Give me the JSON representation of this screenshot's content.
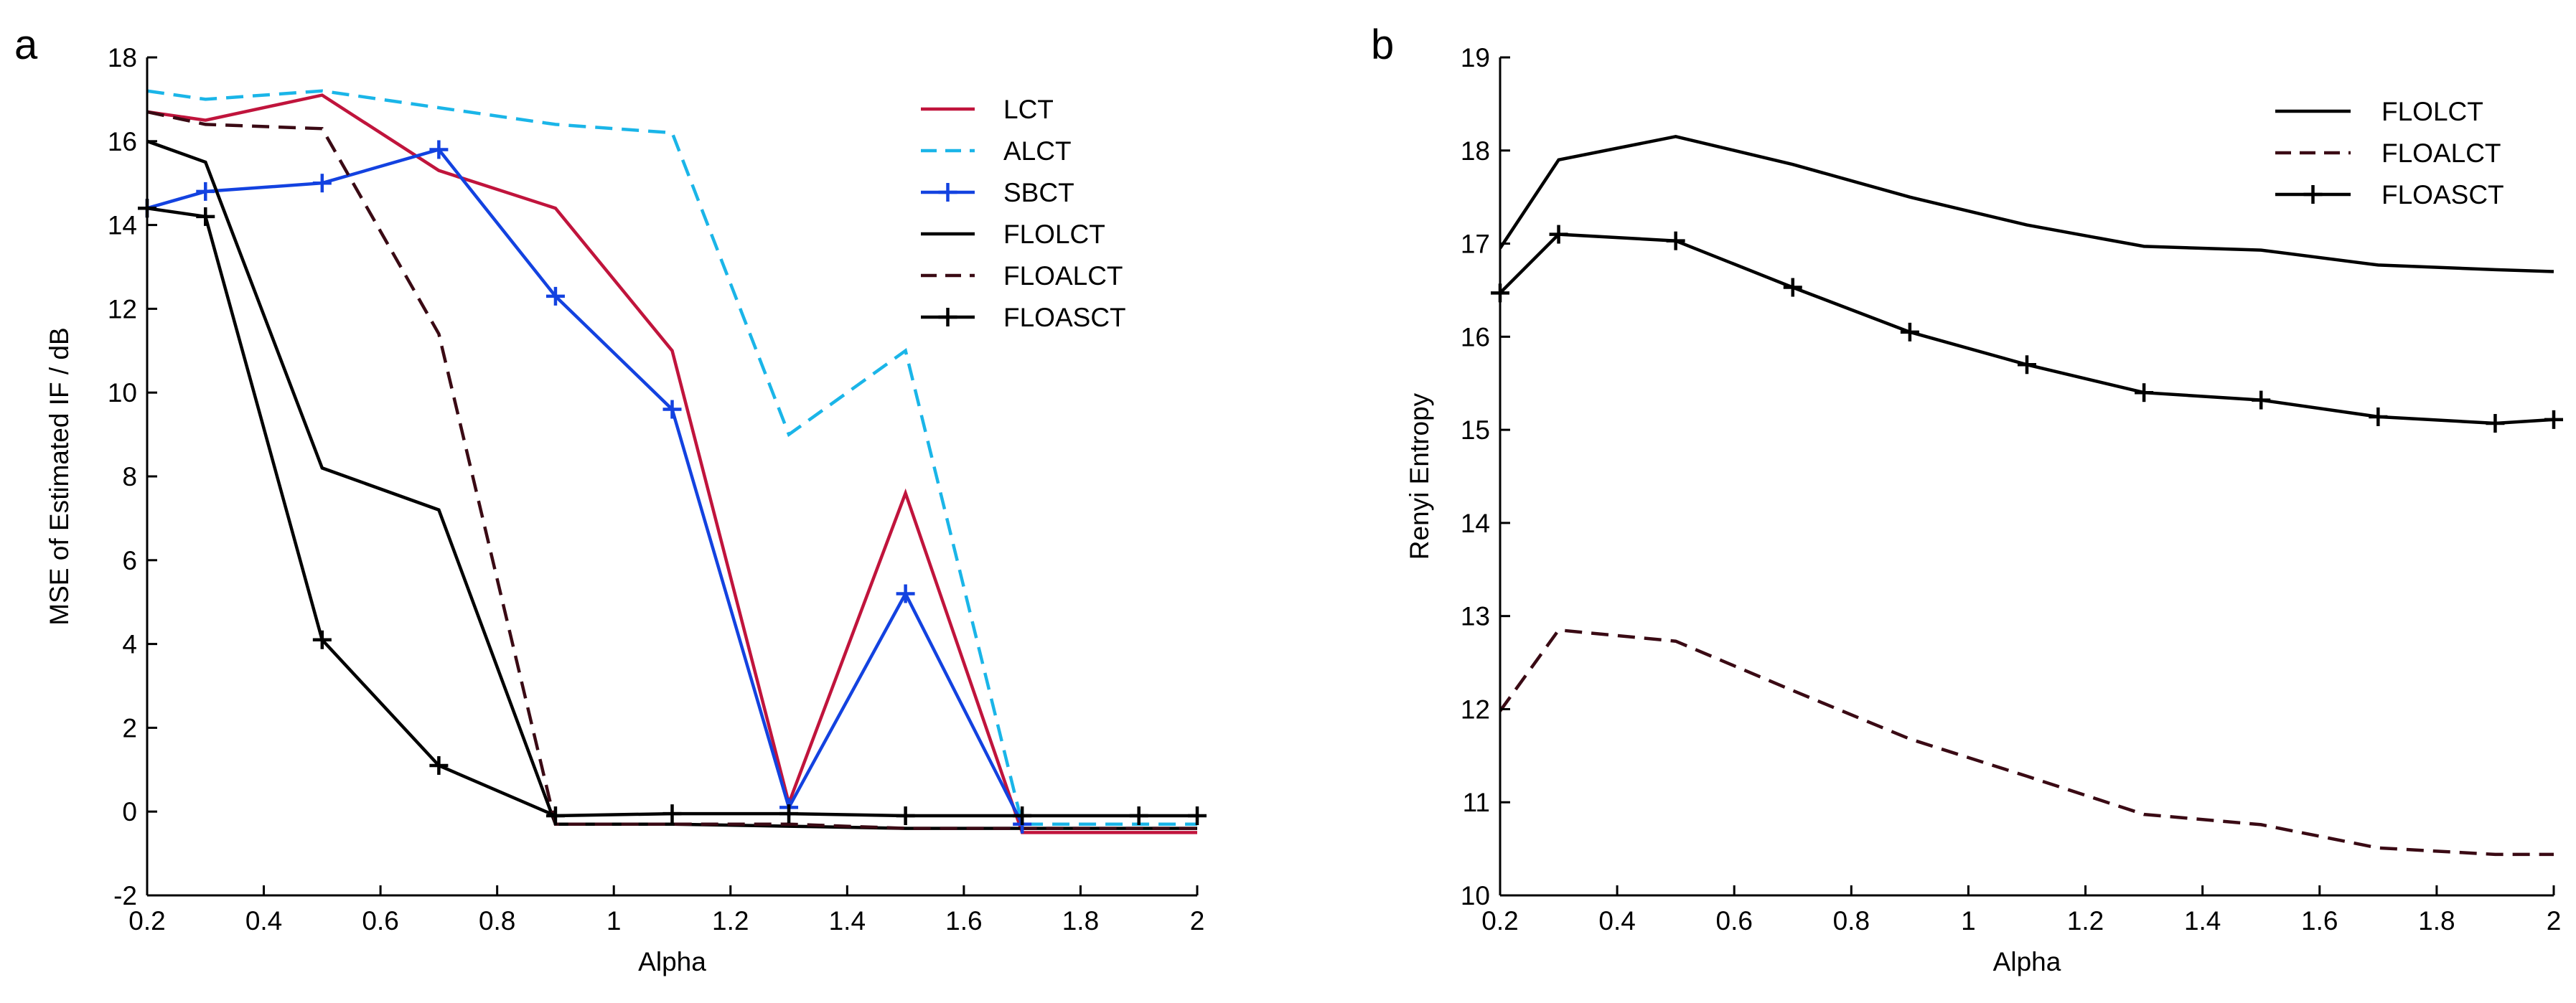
{
  "chart_data": [
    {
      "panel_label": "a",
      "type": "line",
      "xlabel": "Alpha",
      "ylabel": "MSE of Estimated IF / dB",
      "xlim": [
        0.2,
        2
      ],
      "ylim": [
        -2,
        18
      ],
      "xticks": [
        0.2,
        0.4,
        0.6,
        0.8,
        1,
        1.2,
        1.4,
        1.6,
        1.8,
        2
      ],
      "yticks": [
        -2,
        0,
        2,
        4,
        6,
        8,
        10,
        12,
        14,
        16,
        18
      ],
      "legend_position": "top-right",
      "series": [
        {
          "name": "LCT",
          "color": "#c0143c",
          "dash": "solid",
          "marker": "none",
          "x": [
            0.2,
            0.3,
            0.5,
            0.7,
            0.9,
            1.1,
            1.3,
            1.5,
            1.7,
            2.0
          ],
          "y": [
            16.7,
            16.5,
            17.1,
            15.3,
            14.4,
            11.0,
            0.2,
            7.6,
            -0.5,
            -0.5
          ]
        },
        {
          "name": "ALCT",
          "color": "#1ab5e8",
          "dash": "dashed",
          "marker": "none",
          "x": [
            0.2,
            0.3,
            0.5,
            0.7,
            0.9,
            1.1,
            1.3,
            1.5,
            1.7,
            2.0
          ],
          "y": [
            17.2,
            17.0,
            17.2,
            16.8,
            16.4,
            16.2,
            9.0,
            11.0,
            -0.3,
            -0.3
          ]
        },
        {
          "name": "SBCT",
          "color": "#1342e0",
          "dash": "solid",
          "marker": "plus",
          "x": [
            0.2,
            0.3,
            0.5,
            0.7,
            0.9,
            1.1,
            1.3,
            1.5,
            1.7
          ],
          "y": [
            14.4,
            14.8,
            15.0,
            15.8,
            12.3,
            9.6,
            0.1,
            5.2,
            -0.3
          ]
        },
        {
          "name": "FLOLCT",
          "color": "#000000",
          "dash": "solid",
          "marker": "none",
          "x": [
            0.2,
            0.3,
            0.5,
            0.7,
            0.9,
            1.1,
            1.3,
            1.5,
            1.7,
            2.0
          ],
          "y": [
            16.0,
            15.5,
            8.2,
            7.2,
            -0.3,
            -0.3,
            -0.35,
            -0.4,
            -0.4,
            -0.4
          ]
        },
        {
          "name": "FLOALCT",
          "color": "#3a0a14",
          "dash": "dashed",
          "marker": "none",
          "x": [
            0.2,
            0.3,
            0.5,
            0.7,
            0.9,
            1.1,
            1.3,
            1.5,
            1.7,
            2.0
          ],
          "y": [
            16.7,
            16.4,
            16.3,
            11.4,
            -0.3,
            -0.3,
            -0.3,
            -0.4,
            -0.4,
            -0.4
          ]
        },
        {
          "name": "FLOASCT",
          "color": "#000000",
          "dash": "solid",
          "marker": "plus",
          "x": [
            0.2,
            0.3,
            0.5,
            0.7,
            0.9,
            1.1,
            1.3,
            1.5,
            1.7,
            1.9,
            2.0
          ],
          "y": [
            14.4,
            14.2,
            4.1,
            1.1,
            -0.1,
            -0.05,
            -0.05,
            -0.1,
            -0.1,
            -0.1,
            -0.1
          ]
        }
      ]
    },
    {
      "panel_label": "b",
      "type": "line",
      "xlabel": "Alpha",
      "ylabel": "Renyi Entropy",
      "xlim": [
        0.2,
        2
      ],
      "ylim": [
        10,
        19
      ],
      "xticks": [
        0.2,
        0.4,
        0.6,
        0.8,
        1,
        1.2,
        1.4,
        1.6,
        1.8,
        2
      ],
      "yticks": [
        10,
        11,
        12,
        13,
        14,
        15,
        16,
        17,
        18,
        19
      ],
      "legend_position": "top-right",
      "series": [
        {
          "name": "FLOLCT",
          "color": "#000000",
          "dash": "solid",
          "marker": "none",
          "x": [
            0.2,
            0.3,
            0.5,
            0.7,
            0.9,
            1.1,
            1.3,
            1.5,
            1.7,
            1.9,
            2.0
          ],
          "y": [
            16.95,
            17.9,
            18.15,
            17.85,
            17.5,
            17.2,
            16.97,
            16.93,
            16.77,
            16.72,
            16.7
          ]
        },
        {
          "name": "FLOALCT",
          "color": "#3a0a14",
          "dash": "dashed",
          "marker": "none",
          "x": [
            0.2,
            0.3,
            0.5,
            0.7,
            0.9,
            1.1,
            1.3,
            1.5,
            1.7,
            1.9,
            2.0
          ],
          "y": [
            11.98,
            12.85,
            12.73,
            12.2,
            11.68,
            11.28,
            10.87,
            10.76,
            10.51,
            10.44,
            10.44
          ]
        },
        {
          "name": "FLOASCT",
          "color": "#000000",
          "dash": "solid",
          "marker": "plus",
          "x": [
            0.2,
            0.3,
            0.5,
            0.7,
            0.9,
            1.1,
            1.3,
            1.5,
            1.7,
            1.9,
            2.0
          ],
          "y": [
            16.47,
            17.1,
            17.03,
            16.53,
            16.05,
            15.7,
            15.4,
            15.32,
            15.14,
            15.07,
            15.11
          ]
        }
      ]
    }
  ]
}
